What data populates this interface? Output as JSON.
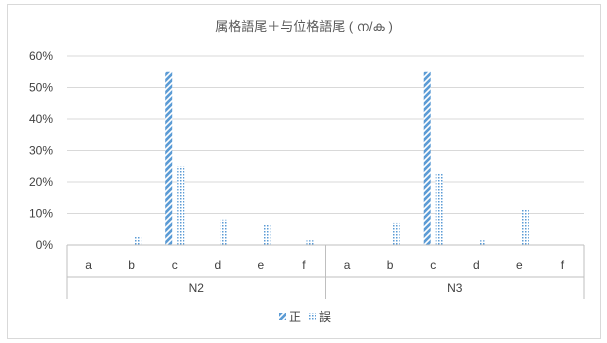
{
  "chart_data": {
    "type": "bar",
    "title": "属格語尾＋与位格語尾 ( ന/ക )",
    "yticks": [
      "0%",
      "10%",
      "20%",
      "30%",
      "40%",
      "50%",
      "60%"
    ],
    "ylim": [
      0,
      60
    ],
    "grid": true,
    "legend_position": "bottom",
    "groups": [
      {
        "label": "N2",
        "categories": [
          "a",
          "b",
          "c",
          "d",
          "e",
          "f"
        ]
      },
      {
        "label": "N3",
        "categories": [
          "a",
          "b",
          "c",
          "d",
          "e",
          "f"
        ]
      }
    ],
    "series": [
      {
        "name": "正",
        "color": "#5b9bd5",
        "pattern": "diagonal",
        "values": [
          0,
          0,
          55,
          0,
          0,
          0,
          0,
          0,
          55,
          0,
          0,
          0
        ]
      },
      {
        "name": "誤",
        "color": "#5b9bd5",
        "pattern": "dotted",
        "values": [
          0,
          3,
          25,
          8,
          6.5,
          1.5,
          0,
          7,
          23,
          1.5,
          11.5,
          0
        ]
      }
    ]
  }
}
